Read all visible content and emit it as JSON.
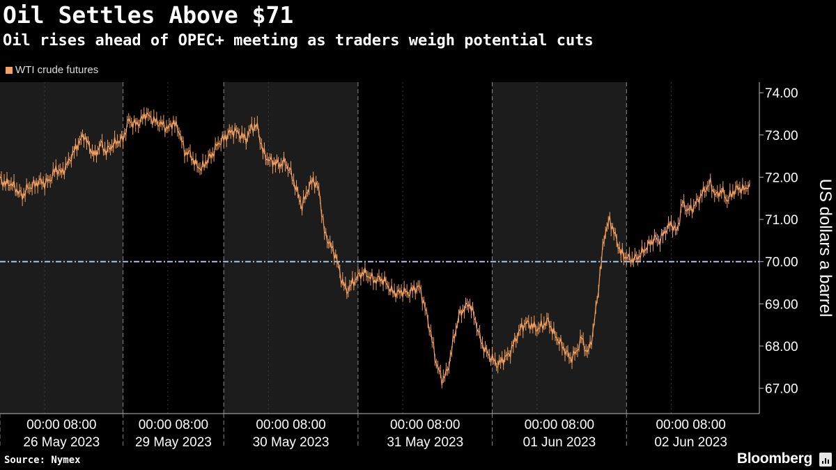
{
  "title": "Oil Settles Above $71",
  "subtitle": "Oil rises ahead of OPEC+ meeting as traders weigh potential cuts",
  "legend": {
    "label": "WTI crude futures",
    "color": "#f5a15f"
  },
  "source": "Source: Nymex",
  "brand": "Bloomberg",
  "colors": {
    "background": "#000000",
    "shade": "#1c1c1c",
    "line": "#f5a15f",
    "reference_line": "#9ccaf5",
    "grid": "#555555",
    "axis_text": "#ffffff"
  },
  "chart_data": {
    "type": "line",
    "title": "Oil Settles Above $71",
    "subtitle": "Oil rises ahead of OPEC+ meeting as traders weigh potential cuts",
    "ylabel": "US dollars a barrel",
    "ylim": [
      66.4,
      74.25
    ],
    "y_ticks": [
      "74.00",
      "73.00",
      "72.00",
      "71.00",
      "70.00",
      "69.00",
      "68.00",
      "67.00"
    ],
    "y_tick_values": [
      74,
      73,
      72,
      71,
      70,
      69,
      68,
      67
    ],
    "reference_line": {
      "y": 70.0,
      "style": "dash-dot"
    },
    "grid": "vertical dashed at session times",
    "legend_position": "top-left",
    "days": [
      {
        "date": "26 May 2023",
        "times": [
          "00:00",
          "08:00"
        ],
        "start_hour": 0,
        "end_hour": 22
      },
      {
        "date": "29 May 2023",
        "times": [
          "00:00",
          "08:00"
        ],
        "start_hour": 22,
        "end_hour": 40
      },
      {
        "date": "30 May 2023",
        "times": [
          "00:00",
          "08:00"
        ],
        "start_hour": 40,
        "end_hour": 64
      },
      {
        "date": "31 May 2023",
        "times": [
          "00:00",
          "08:00"
        ],
        "start_hour": 64,
        "end_hour": 88
      },
      {
        "date": "01 Jun 2023",
        "times": [
          "00:00",
          "08:00"
        ],
        "start_hour": 88,
        "end_hour": 112
      },
      {
        "date": "02 Jun 2023",
        "times": [
          "00:00",
          "08:00"
        ],
        "start_hour": 112,
        "end_hour": 135
      }
    ],
    "session_hours": [
      0,
      22,
      40,
      64,
      88,
      112
    ],
    "series": [
      {
        "name": "WTI crude futures",
        "points": [
          [
            0,
            71.95
          ],
          [
            1,
            71.85
          ],
          [
            2,
            71.85
          ],
          [
            3,
            71.7
          ],
          [
            4,
            71.55
          ],
          [
            5,
            71.75
          ],
          [
            6,
            71.8
          ],
          [
            7,
            71.9
          ],
          [
            8,
            71.85
          ],
          [
            9,
            71.95
          ],
          [
            10,
            72.2
          ],
          [
            11,
            72.1
          ],
          [
            12,
            72.3
          ],
          [
            13,
            72.55
          ],
          [
            14,
            72.8
          ],
          [
            15,
            73.0
          ],
          [
            16,
            72.7
          ],
          [
            17,
            72.5
          ],
          [
            18,
            72.8
          ],
          [
            19,
            72.6
          ],
          [
            20,
            72.75
          ],
          [
            21,
            72.85
          ],
          [
            22,
            72.9
          ],
          [
            23,
            73.35
          ],
          [
            24,
            73.25
          ],
          [
            25,
            73.3
          ],
          [
            26,
            73.5
          ],
          [
            27,
            73.4
          ],
          [
            28,
            73.3
          ],
          [
            29,
            73.25
          ],
          [
            30,
            73.15
          ],
          [
            31,
            73.3
          ],
          [
            32,
            73.1
          ],
          [
            33,
            72.6
          ],
          [
            34,
            72.55
          ],
          [
            35,
            72.3
          ],
          [
            36,
            72.2
          ],
          [
            37,
            72.4
          ],
          [
            38,
            72.55
          ],
          [
            39,
            72.8
          ],
          [
            40,
            72.9
          ],
          [
            41,
            73.05
          ],
          [
            42,
            73.1
          ],
          [
            43,
            73.0
          ],
          [
            44,
            72.9
          ],
          [
            45,
            73.2
          ],
          [
            46,
            73.2
          ],
          [
            47,
            72.6
          ],
          [
            48,
            72.4
          ],
          [
            49,
            72.35
          ],
          [
            50,
            72.3
          ],
          [
            51,
            72.35
          ],
          [
            52,
            72.1
          ],
          [
            53,
            71.7
          ],
          [
            54,
            71.3
          ],
          [
            55,
            71.7
          ],
          [
            56,
            71.95
          ],
          [
            57,
            71.7
          ],
          [
            58,
            70.7
          ],
          [
            59,
            70.4
          ],
          [
            60,
            70.15
          ],
          [
            61,
            69.6
          ],
          [
            62,
            69.3
          ],
          [
            63,
            69.5
          ],
          [
            64,
            69.65
          ],
          [
            65,
            69.75
          ],
          [
            66,
            69.65
          ],
          [
            67,
            69.55
          ],
          [
            68,
            69.6
          ],
          [
            69,
            69.5
          ],
          [
            70,
            69.3
          ],
          [
            71,
            69.25
          ],
          [
            72,
            69.3
          ],
          [
            73,
            69.25
          ],
          [
            74,
            69.35
          ],
          [
            75,
            69.4
          ],
          [
            76,
            68.9
          ],
          [
            77,
            68.3
          ],
          [
            78,
            67.6
          ],
          [
            79,
            67.2
          ],
          [
            80,
            67.4
          ],
          [
            81,
            68.1
          ],
          [
            82,
            68.7
          ],
          [
            83,
            68.9
          ],
          [
            84,
            69.0
          ],
          [
            85,
            68.6
          ],
          [
            86,
            68.1
          ],
          [
            87,
            67.85
          ],
          [
            88,
            67.7
          ],
          [
            89,
            67.55
          ],
          [
            90,
            67.7
          ],
          [
            91,
            67.8
          ],
          [
            92,
            68.1
          ],
          [
            93,
            68.4
          ],
          [
            94,
            68.55
          ],
          [
            95,
            68.5
          ],
          [
            96,
            68.4
          ],
          [
            97,
            68.5
          ],
          [
            98,
            68.6
          ],
          [
            99,
            68.3
          ],
          [
            100,
            68.1
          ],
          [
            101,
            67.9
          ],
          [
            102,
            67.7
          ],
          [
            103,
            67.85
          ],
          [
            104,
            68.2
          ],
          [
            105,
            67.8
          ],
          [
            106,
            68.3
          ],
          [
            107,
            69.4
          ],
          [
            108,
            70.6
          ],
          [
            109,
            71.0
          ],
          [
            110,
            70.6
          ],
          [
            111,
            70.2
          ],
          [
            112,
            70.1
          ],
          [
            113,
            70.05
          ],
          [
            114,
            70.1
          ],
          [
            115,
            70.25
          ],
          [
            116,
            70.4
          ],
          [
            117,
            70.55
          ],
          [
            118,
            70.5
          ],
          [
            119,
            70.75
          ],
          [
            120,
            70.9
          ],
          [
            121,
            70.7
          ],
          [
            122,
            71.4
          ],
          [
            123,
            71.2
          ],
          [
            124,
            71.3
          ],
          [
            125,
            71.5
          ],
          [
            126,
            71.7
          ],
          [
            127,
            71.85
          ],
          [
            128,
            71.55
          ],
          [
            129,
            71.7
          ],
          [
            130,
            71.45
          ],
          [
            131,
            71.65
          ],
          [
            132,
            71.75
          ],
          [
            133,
            71.7
          ],
          [
            134,
            71.85
          ]
        ]
      }
    ]
  }
}
